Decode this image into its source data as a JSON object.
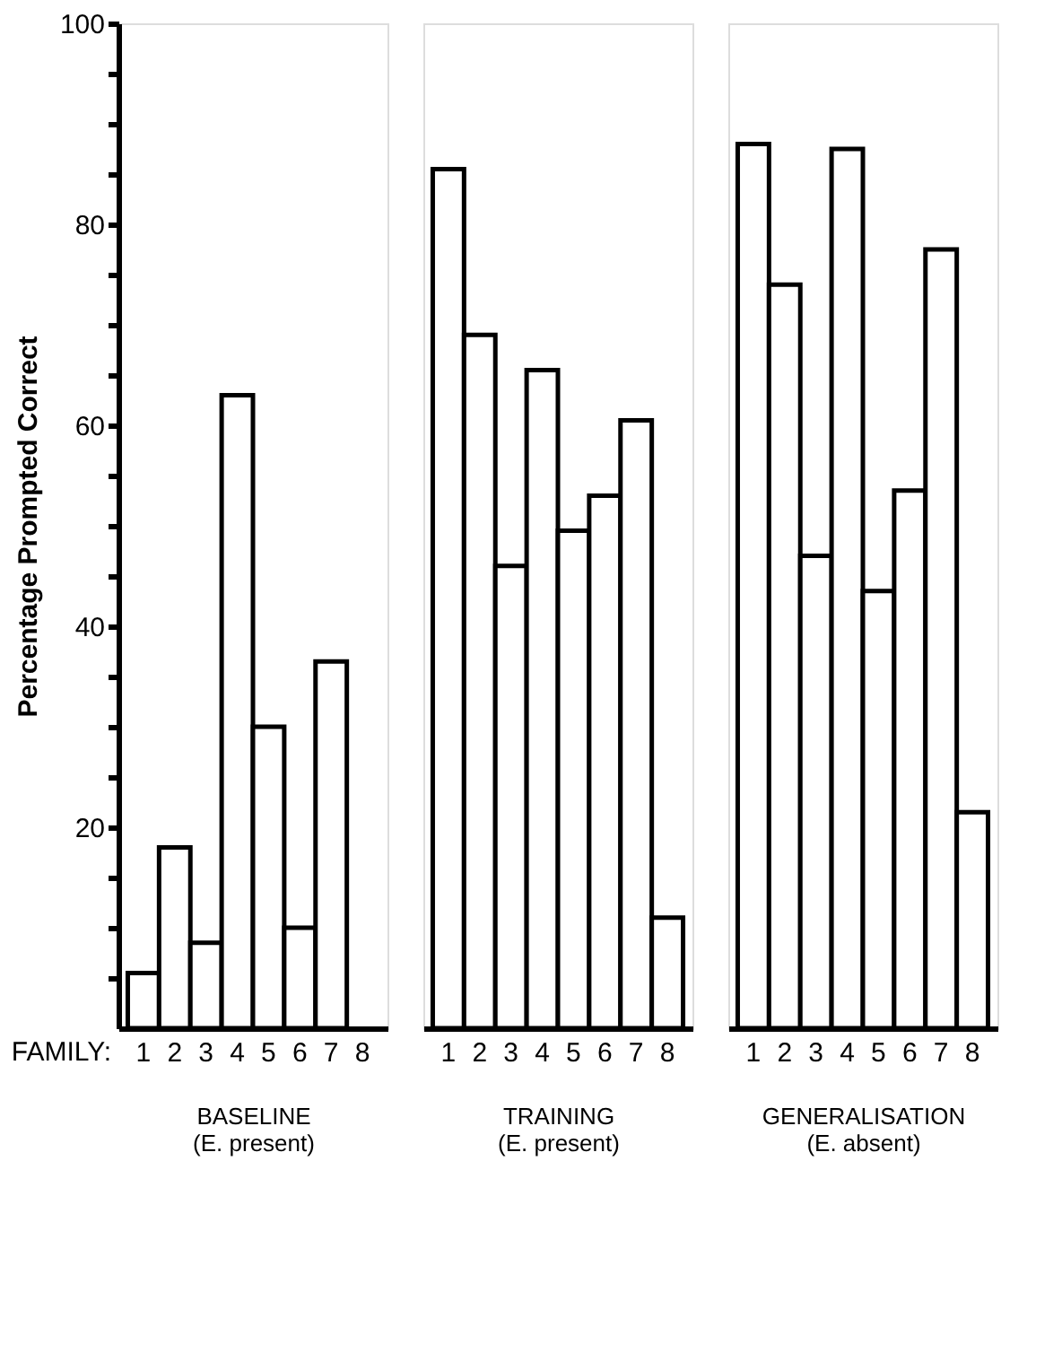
{
  "chart_data": [
    {
      "type": "bar",
      "categories": [
        "1",
        "2",
        "3",
        "4",
        "5",
        "6",
        "7",
        "8"
      ],
      "values": [
        5.5,
        18,
        8.5,
        63,
        30,
        10,
        36.5,
        null
      ],
      "color": "#ffffff",
      "ylabel": "Percentage Prompted Correct",
      "xlabel": "BASELINE\n(E. present)",
      "annotations": [
        "FAMILY:"
      ],
      "ylim": [
        0,
        100
      ],
      "yticks": [
        {
          "value": 5,
          "label": null
        },
        {
          "value": 10,
          "label": null
        },
        {
          "value": 15,
          "label": null
        },
        20,
        {
          "value": 25,
          "label": null
        },
        {
          "value": 30,
          "label": null
        },
        {
          "value": 35,
          "label": null
        },
        40,
        {
          "value": 45,
          "label": null
        },
        {
          "value": 50,
          "label": null
        },
        {
          "value": 55,
          "label": null
        },
        60,
        {
          "value": 65,
          "label": null
        },
        {
          "value": 70,
          "label": null
        },
        {
          "value": 75,
          "label": null
        },
        80,
        {
          "value": 85,
          "label": null
        },
        {
          "value": 90,
          "label": null
        },
        {
          "value": 95,
          "label": null
        },
        100
      ],
      "grid": false
    },
    {
      "type": "bar",
      "categories": [
        "1",
        "2",
        "3",
        "4",
        "5",
        "6",
        "7",
        "8"
      ],
      "values": [
        85.5,
        69,
        46,
        65.5,
        49.5,
        53,
        60.5,
        11
      ],
      "color": "#ffffff",
      "xlabel": "TRAINING\n(E. present)",
      "ylim": [
        0,
        100
      ],
      "tick_labels": "x",
      "grid": false
    },
    {
      "type": "bar",
      "categories": [
        "1",
        "2",
        "3",
        "4",
        "5",
        "6",
        "7",
        "8"
      ],
      "values": [
        88,
        74,
        47,
        87.5,
        43.5,
        53.5,
        77.5,
        21.5
      ],
      "color": "#ffffff",
      "xlabel": "GENERALISATION\n(E. absent)",
      "ylim": [
        0,
        100
      ],
      "tick_labels": "x",
      "grid": false
    }
  ]
}
